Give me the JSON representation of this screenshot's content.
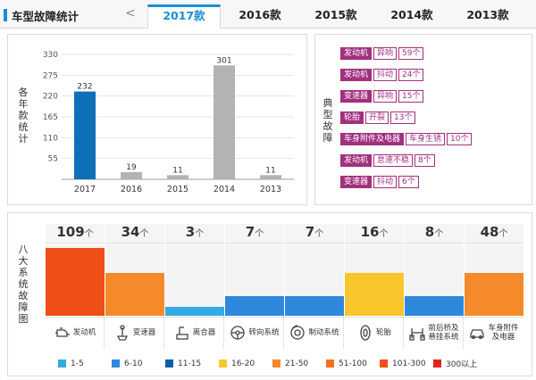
{
  "header": {
    "title": "车型故障统计",
    "prev_arrow": "<",
    "tabs": [
      {
        "label": "2017款",
        "active": true
      },
      {
        "label": "2016款",
        "active": false
      },
      {
        "label": "2015款",
        "active": false
      },
      {
        "label": "2014款",
        "active": false
      },
      {
        "label": "2013款",
        "active": false
      }
    ]
  },
  "year_panel": {
    "vertical_label": "各年款统计",
    "chart_data": {
      "type": "bar",
      "categories": [
        "2017",
        "2016",
        "2015",
        "2014",
        "2013"
      ],
      "values": [
        232,
        19,
        11,
        301,
        11
      ],
      "bar_colors": [
        "#0d6fb8",
        "#b3b3b3",
        "#b3b3b3",
        "#b3b3b3",
        "#b3b3b3"
      ],
      "yticks": [
        55,
        110,
        165,
        220,
        275,
        330
      ],
      "ylim": [
        0,
        330
      ],
      "title": "",
      "xlabel": "",
      "ylabel": ""
    }
  },
  "faults_panel": {
    "vertical_label": "典型故障",
    "items": [
      {
        "category": "发动机",
        "symptom": "异响",
        "count": "59个"
      },
      {
        "category": "发动机",
        "symptom": "抖动",
        "count": "24个"
      },
      {
        "category": "变速器",
        "symptom": "异响",
        "count": "15个"
      },
      {
        "category": "轮胎",
        "symptom": "开裂",
        "count": "13个"
      },
      {
        "category": "车身附件及电器",
        "symptom": "车身生锈",
        "count": "10个"
      },
      {
        "category": "发动机",
        "symptom": "怠速不稳",
        "count": "8个"
      },
      {
        "category": "变速器",
        "symptom": "抖动",
        "count": "6个"
      }
    ],
    "tag_color": "#a2307f"
  },
  "systems_panel": {
    "vertical_label": "八大系统故障图",
    "unit": "个",
    "systems": [
      {
        "name": "发动机",
        "count": "109",
        "value": 109,
        "level": 0.95,
        "color": "#f04e17",
        "icon": "engine-icon"
      },
      {
        "name": "变速器",
        "count": "34",
        "value": 34,
        "level": 0.6,
        "color": "#f58a2a",
        "icon": "gear-shift-icon"
      },
      {
        "name": "离合器",
        "count": "3",
        "value": 3,
        "level": 0.12,
        "color": "#35a9e1",
        "icon": "clutch-icon"
      },
      {
        "name": "转向系统",
        "count": "7",
        "value": 7,
        "level": 0.28,
        "color": "#2e89dc",
        "icon": "steering-wheel-icon"
      },
      {
        "name": "制动系统",
        "count": "7",
        "value": 7,
        "level": 0.28,
        "color": "#2e89dc",
        "icon": "brake-icon"
      },
      {
        "name": "轮胎",
        "count": "16",
        "value": 16,
        "level": 0.6,
        "color": "#f8c62c",
        "icon": "tire-icon"
      },
      {
        "name": "前后桥及\n悬挂系统",
        "count": "8",
        "value": 8,
        "level": 0.28,
        "color": "#2e89dc",
        "icon": "suspension-icon"
      },
      {
        "name": "车身附件\n及电器",
        "count": "48",
        "value": 48,
        "level": 0.6,
        "color": "#f58a2a",
        "icon": "car-body-icon"
      }
    ],
    "legend": [
      {
        "label": "1-5",
        "color": "#35a9e1"
      },
      {
        "label": "6-10",
        "color": "#2e89dc"
      },
      {
        "label": "11-15",
        "color": "#0d5fa8"
      },
      {
        "label": "16-20",
        "color": "#f8c62c"
      },
      {
        "label": "21-50",
        "color": "#f58a2a"
      },
      {
        "label": "51-100",
        "color": "#f26f22"
      },
      {
        "label": "101-300",
        "color": "#f04e17"
      },
      {
        "label": "300以上",
        "color": "#e0261c"
      }
    ]
  }
}
